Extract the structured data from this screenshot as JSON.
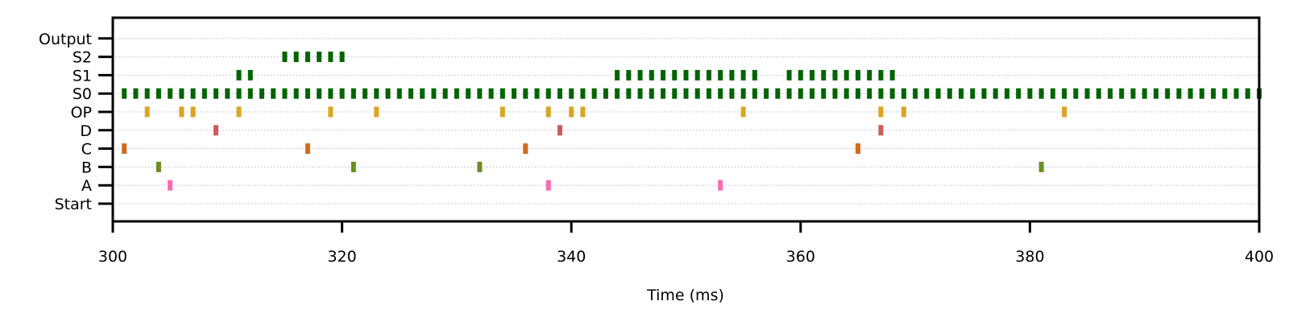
{
  "chart_data": {
    "type": "event raster",
    "title": "",
    "xlabel": "Time (ms)",
    "ylabel": "",
    "xlim": [
      300,
      400
    ],
    "xticks": [
      300,
      320,
      340,
      360,
      380,
      400
    ],
    "grid": "horizontal dotted",
    "rows": [
      {
        "name": "Start",
        "color": "#808080",
        "events": []
      },
      {
        "name": "A",
        "color": "#ff69b4",
        "events": [
          305,
          338,
          353
        ]
      },
      {
        "name": "B",
        "color": "#6b8e23",
        "events": [
          304,
          321,
          332,
          381
        ]
      },
      {
        "name": "C",
        "color": "#d2691e",
        "events": [
          301,
          317,
          336,
          365
        ]
      },
      {
        "name": "D",
        "color": "#cd5c5c",
        "events": [
          309,
          339,
          367
        ]
      },
      {
        "name": "OP",
        "color": "#daa520",
        "events": [
          303,
          306,
          307,
          311,
          319,
          323,
          334,
          338,
          340,
          341,
          355,
          367,
          369,
          383
        ]
      },
      {
        "name": "S0",
        "color": "#006400",
        "events": [
          301,
          302,
          303,
          304,
          305,
          306,
          307,
          308,
          309,
          310,
          311,
          312,
          313,
          314,
          315,
          316,
          317,
          318,
          319,
          320,
          321,
          322,
          323,
          324,
          325,
          326,
          327,
          328,
          329,
          330,
          331,
          332,
          333,
          334,
          335,
          336,
          337,
          338,
          339,
          340,
          341,
          342,
          343,
          344,
          345,
          346,
          347,
          348,
          349,
          350,
          351,
          352,
          353,
          354,
          355,
          356,
          357,
          358,
          359,
          360,
          361,
          362,
          363,
          364,
          365,
          366,
          367,
          368,
          369,
          370,
          371,
          372,
          373,
          374,
          375,
          376,
          377,
          378,
          379,
          380,
          381,
          382,
          383,
          384,
          385,
          386,
          387,
          388,
          389,
          390,
          391,
          392,
          393,
          394,
          395,
          396,
          397,
          398,
          399,
          400
        ]
      },
      {
        "name": "S1",
        "color": "#006400",
        "events": [
          311,
          312,
          344,
          345,
          346,
          347,
          348,
          349,
          350,
          351,
          352,
          353,
          354,
          355,
          356,
          359,
          360,
          361,
          362,
          363,
          364,
          365,
          366,
          367,
          368
        ]
      },
      {
        "name": "S2",
        "color": "#006400",
        "events": [
          315,
          316,
          317,
          318,
          319,
          320
        ]
      },
      {
        "name": "Output",
        "color": "#808080",
        "events": []
      }
    ]
  }
}
